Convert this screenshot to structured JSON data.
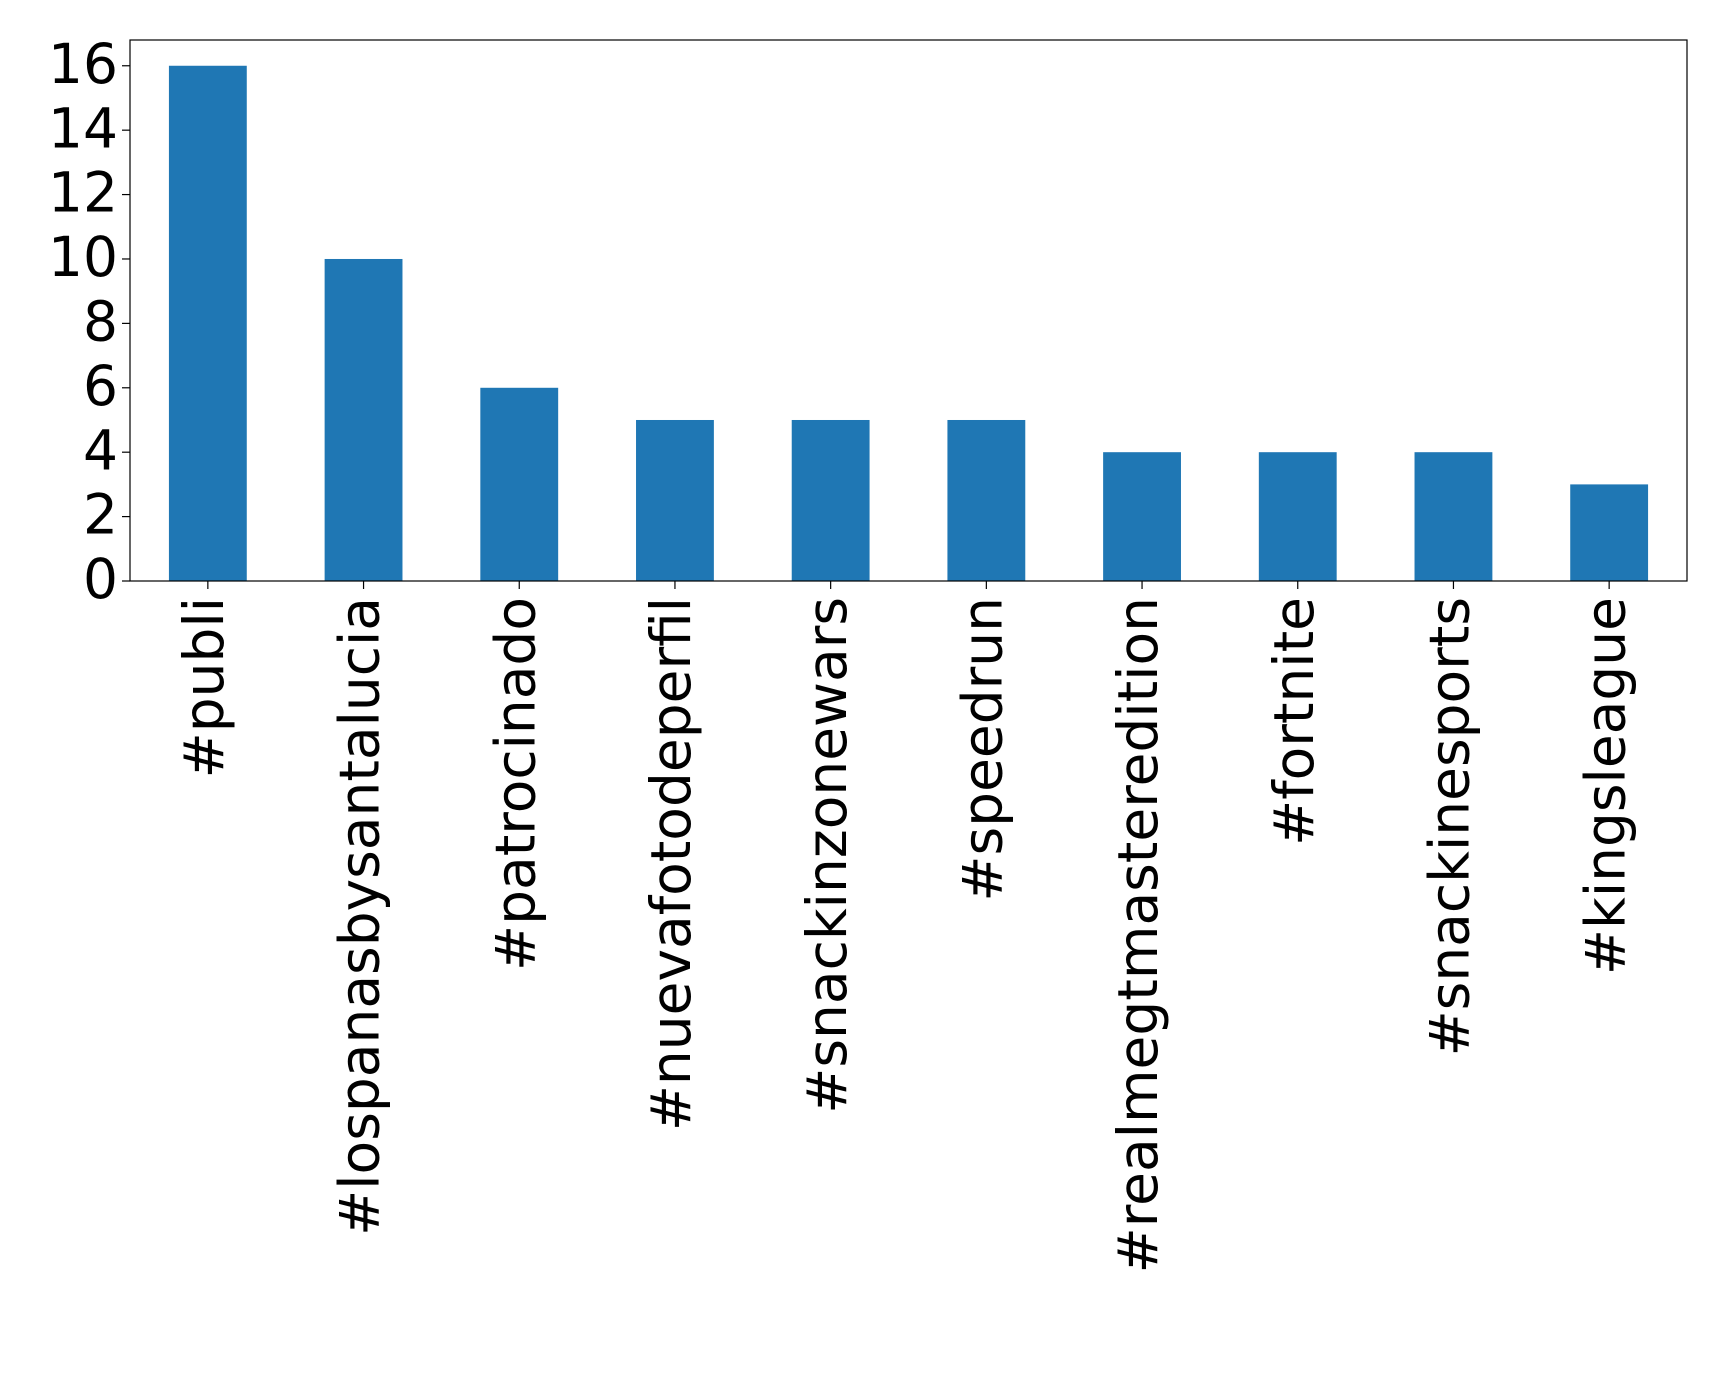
{
  "chart_data": {
    "type": "bar",
    "categories": [
      "#publi",
      "#lospanasbysantalucia",
      "#patrocinado",
      "#nuevafotodeperfil",
      "#snackinzonewars",
      "#speedrun",
      "#realmegtmasteredition",
      "#fortnite",
      "#snackinesports",
      "#kingsleague"
    ],
    "values": [
      16,
      10,
      6,
      5,
      5,
      5,
      4,
      4,
      4,
      3
    ],
    "color": "#1f77b4",
    "ylim": [
      0,
      16.8
    ],
    "yticks": [
      0,
      2,
      4,
      6,
      8,
      10,
      12,
      14,
      16
    ],
    "grid": false
  }
}
